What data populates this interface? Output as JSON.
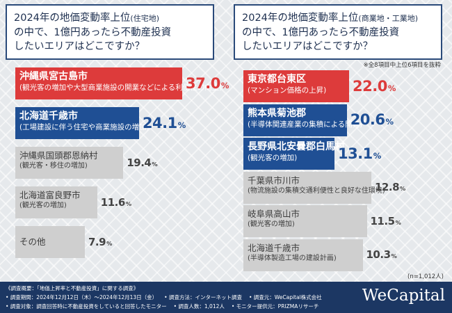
{
  "colors": {
    "red": "#dd3b3b",
    "blue": "#1f4f94",
    "gray": "#cfcfcf",
    "navy": "#1c3763"
  },
  "left": {
    "question": {
      "line1a": "2024年の地価変動率上位",
      "line1b": "(住宅地)",
      "line2": "の中で、1億円あったら不動産投資",
      "line3": "したいエリアはどこですか？"
    },
    "chart_data": {
      "type": "bar",
      "title": "2024年の地価変動率上位(住宅地)の中で、1億円あったら不動産投資したいエリアはどこですか？",
      "categories": [
        "沖縄県宮古島市",
        "北海道千歳市",
        "沖縄県国頭郡恩納村",
        "北海道富良野市",
        "その他"
      ],
      "descriptions": [
        "(観光客の増加や大型商業施設の開業などによる利便性の向上)",
        "(工場建設に伴う住宅や商業施設の増加)",
        "(観光客・移住の増加)",
        "(観光客の増加)",
        ""
      ],
      "values": [
        37.0,
        24.1,
        19.4,
        11.6,
        7.9
      ],
      "labels": [
        "37.0",
        "24.1",
        "19.4",
        "11.6",
        "7.9"
      ],
      "unit": "%"
    }
  },
  "right": {
    "question": {
      "line1a": "2024年の地価変動率上位",
      "line1b": "(商業地・工業地)",
      "line2": "の中で、1億円あったら不動産投資",
      "line3": "したいエリアはどこですか？"
    },
    "note": "※全8項目中上位6項目を抜粋",
    "chart_data": {
      "type": "bar",
      "title": "2024年の地価変動率上位(商業地・工業地)の中で、1億円あったら不動産投資したいエリアはどこですか？",
      "categories": [
        "東京都台東区",
        "熊本県菊池郡",
        "長野県北安曇郡白馬村",
        "千葉県市川市",
        "岐阜県高山市",
        "北海道千歳市"
      ],
      "descriptions": [
        "(マンション価格の上昇)",
        "(半導体関連産業の集積による開発)",
        "(観光客の増加)",
        "(物流施設の集積交通利便性と良好な住環境)",
        "(観光客の増加)",
        "(半導体製造工場の建設計画)"
      ],
      "values": [
        22.0,
        20.6,
        13.1,
        12.8,
        11.5,
        10.3
      ],
      "labels": [
        "22.0",
        "20.6",
        "13.1",
        "12.8",
        "11.5",
        "10.3"
      ],
      "unit": "%"
    },
    "n": "(n=1,012人)"
  },
  "footer": {
    "line1": "《調査概要：「地価上昇率と不動産投資」に関する調査》",
    "line2a": "• 調査期間：2024年12月12日（木）～2024年12月13日（金）",
    "line2b": "• 調査方法：インターネット調査",
    "line2c": "• 調査元：WeCapital株式会社",
    "line3a": "• 調査対象：調査回答時に不動産投資をしていると回答したモニター",
    "line3b": "• 調査人数：1,012人",
    "line3c": "• モニター提供元：PRIZMAリサーチ",
    "logo": "WeCapital"
  }
}
